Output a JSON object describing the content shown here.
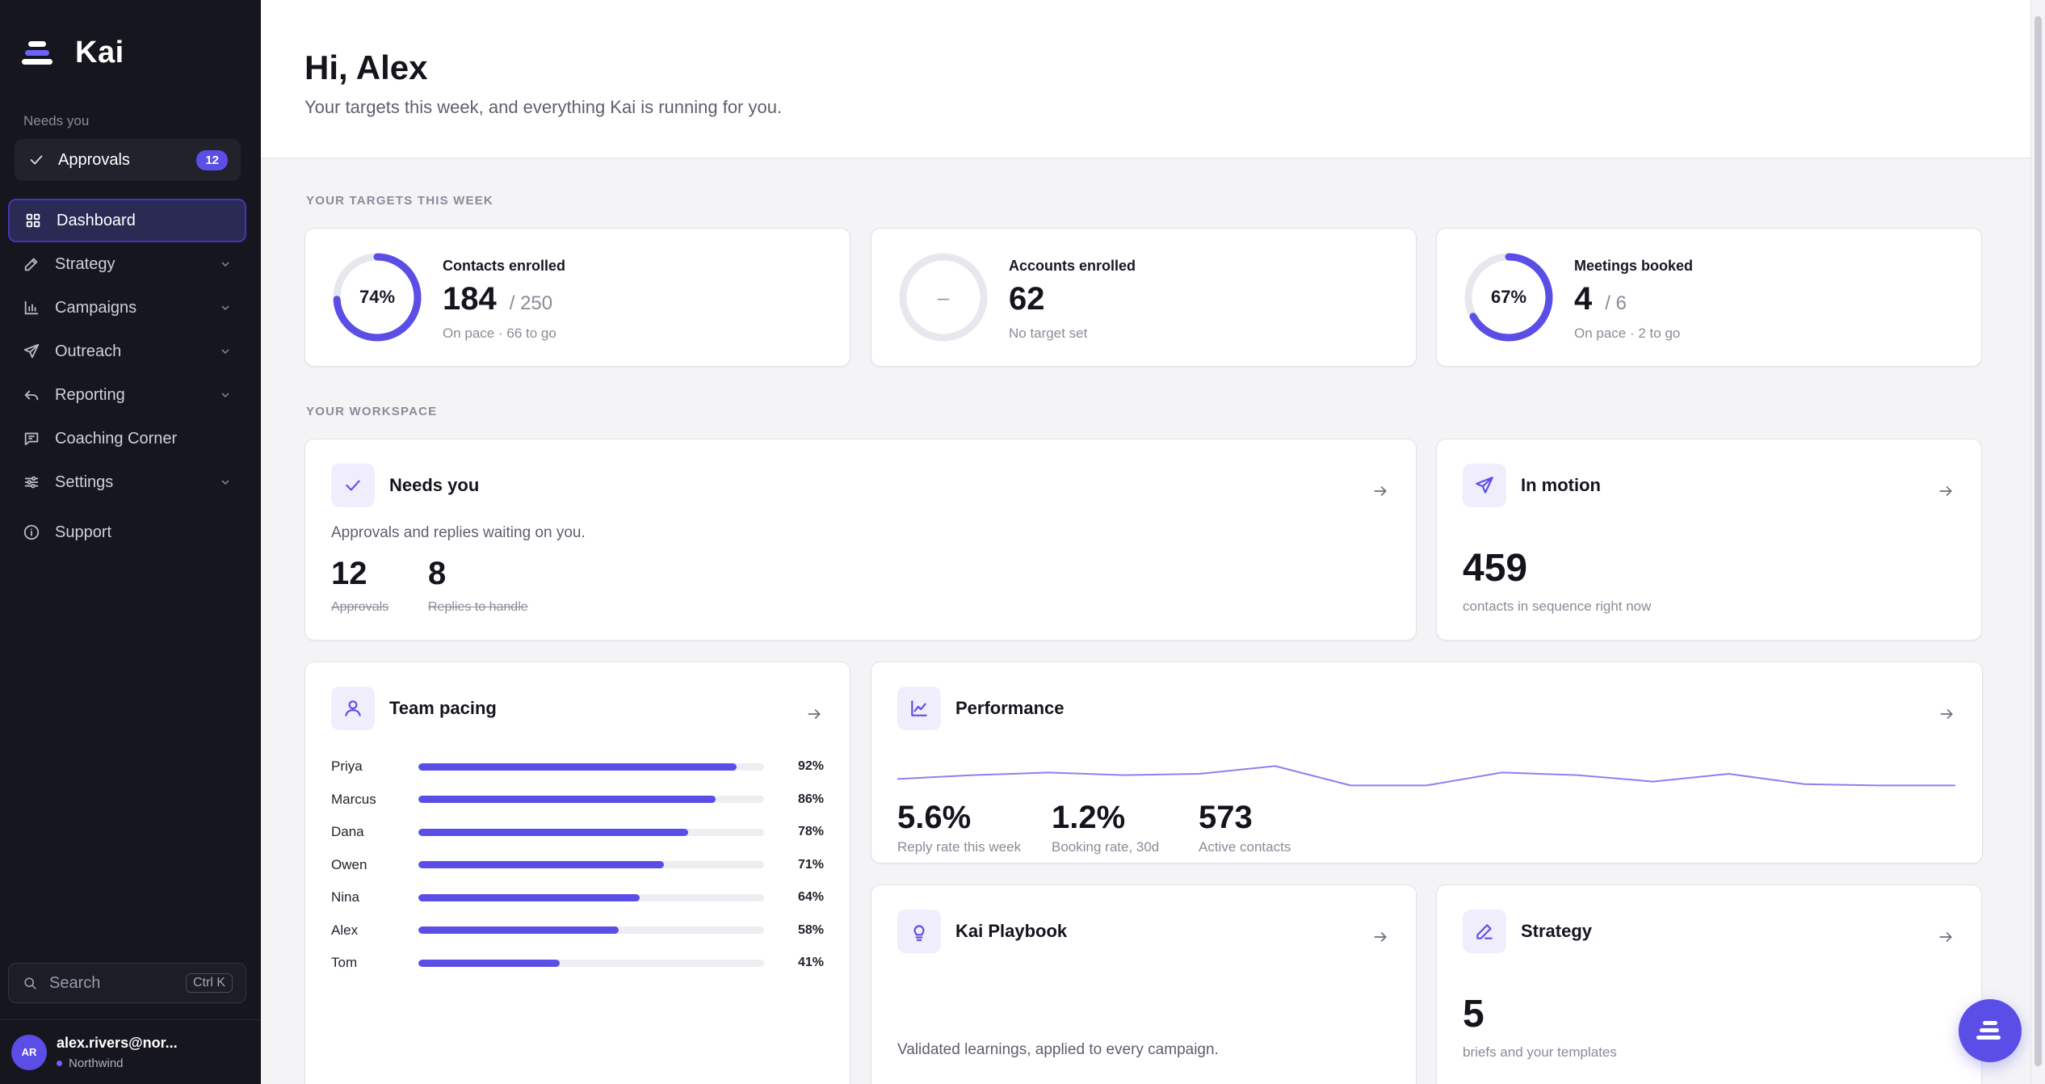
{
  "sidebar": {
    "brand": "Kai",
    "needs_label": "Needs you",
    "approvals": {
      "label": "Approvals",
      "count": "12"
    },
    "nav": [
      {
        "label": "Dashboard",
        "icon": "grid-icon",
        "active": true
      },
      {
        "label": "Strategy",
        "icon": "pen-icon"
      },
      {
        "label": "Campaigns",
        "icon": "bar-chart-icon"
      },
      {
        "label": "Outreach",
        "icon": "send-icon"
      },
      {
        "label": "Reporting",
        "icon": "reply-icon"
      },
      {
        "label": "Coaching Corner",
        "icon": "message-icon"
      },
      {
        "label": "Settings",
        "icon": "sliders-icon"
      },
      {
        "label": "Support",
        "icon": "info-icon"
      }
    ],
    "search": {
      "label": "Search",
      "shortcut": "Ctrl K"
    },
    "user": {
      "initials": "AR",
      "email": "alex.rivers@nor...",
      "org": "Northwind"
    }
  },
  "header": {
    "greeting": "Hi, Alex",
    "subtitle": "Your targets this week, and everything Kai is running for you."
  },
  "targets": {
    "section_label": "YOUR TARGETS THIS WEEK",
    "items": [
      {
        "title": "Contacts enrolled",
        "percent_label": "74%",
        "progress": 0.74,
        "value": "184",
        "target": "/ 250",
        "sub": "On pace · 66 to go"
      },
      {
        "title": "Accounts enrolled",
        "percent_label": "–",
        "progress": 0,
        "value": "62",
        "target": "",
        "sub": "No target set"
      },
      {
        "title": "Meetings booked",
        "percent_label": "67%",
        "progress": 0.67,
        "value": "4",
        "target": "/ 6",
        "sub": "On pace · 2 to go"
      }
    ]
  },
  "workspace": {
    "section_label": "YOUR WORKSPACE",
    "needs_you": {
      "title": "Needs you",
      "desc": "Approvals and replies waiting on you.",
      "approvals_value": "12",
      "approvals_label": "Approvals",
      "replies_value": "8",
      "replies_label": "Replies to handle"
    },
    "in_motion": {
      "title": "In motion",
      "value": "459",
      "label": "contacts in sequence right now"
    },
    "team_pacing": {
      "title": "Team pacing",
      "rows": [
        {
          "name": "Priya",
          "pct": 92,
          "label": "92%"
        },
        {
          "name": "Marcus",
          "pct": 86,
          "label": "86%"
        },
        {
          "name": "Dana",
          "pct": 78,
          "label": "78%"
        },
        {
          "name": "Owen",
          "pct": 71,
          "label": "71%"
        },
        {
          "name": "Nina",
          "pct": 64,
          "label": "64%"
        },
        {
          "name": "Alex",
          "pct": 58,
          "label": "58%"
        },
        {
          "name": "Tom",
          "pct": 41,
          "label": "41%"
        }
      ]
    },
    "performance": {
      "title": "Performance",
      "sparkline": [
        0.3,
        0.45,
        0.55,
        0.45,
        0.5,
        0.8,
        0.05,
        0.05,
        0.55,
        0.45,
        0.2,
        0.5,
        0.1,
        0.05,
        0.05
      ],
      "metrics": [
        {
          "value": "5.6%",
          "label": "Reply rate this week"
        },
        {
          "value": "1.2%",
          "label": "Booking rate, 30d"
        },
        {
          "value": "573",
          "label": "Active contacts"
        }
      ]
    },
    "playbook": {
      "title": "Kai Playbook",
      "desc": "Validated learnings, applied to every campaign."
    },
    "strategy": {
      "title": "Strategy",
      "value": "5",
      "label": "briefs and your templates"
    }
  },
  "colors": {
    "accent": "#5b4ee6",
    "sidebar_bg": "#16161f",
    "page_bg": "#f4f4f7"
  }
}
